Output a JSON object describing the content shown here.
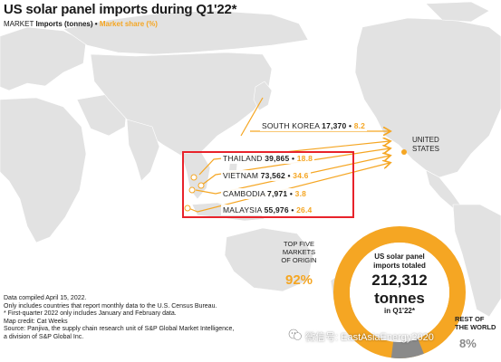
{
  "title": "US solar panel imports during Q1'22*",
  "legend": {
    "market": "MARKET",
    "imports": "Imports (tonnes)",
    "separator": "•",
    "share": "Market share (%)"
  },
  "markets": [
    {
      "name": "SOUTH KOREA",
      "imports": "17,370",
      "share": "8.2"
    },
    {
      "name": "THAILAND",
      "imports": "39,865",
      "share": "18.8"
    },
    {
      "name": "VIETNAM",
      "imports": "73,562",
      "share": "34.6"
    },
    {
      "name": "CAMBODIA",
      "imports": "7,971",
      "share": "3.8"
    },
    {
      "name": "MALAYSIA",
      "imports": "55,976",
      "share": "26.4"
    }
  ],
  "destination": {
    "line1": "UNITED",
    "line2": "STATES"
  },
  "top_five": {
    "line1": "TOP FIVE",
    "line2": "MARKETS",
    "line3": "OF ORIGIN",
    "pct": "92%",
    "fraction": 0.92
  },
  "total": {
    "line1": "US solar panel",
    "line2": "imports totaled",
    "value": "212,312",
    "unit": "tonnes",
    "period": "in Q1'22*"
  },
  "rest_of_world": {
    "line1": "REST OF",
    "line2": "THE WORLD",
    "pct": "8%",
    "fraction": 0.08
  },
  "notes": [
    "Data compiled April 15, 2022.",
    "Only includes countries that report monthly data to the U.S. Census Bureau.",
    "* First-quarter 2022 only includes January and February data.",
    "Map credit: Cat Weeks",
    "Source: Panjiva, the supply chain research unit of S&P Global Market Intelligence,",
    "a division of S&P Global Inc."
  ],
  "watermark": "微信号: EastAsiaEnergy2020",
  "colors": {
    "accent": "#f5a623",
    "highlight": "#e8232b",
    "land": "#e2e2e2",
    "rest_of_world": "#8a8a8a"
  }
}
